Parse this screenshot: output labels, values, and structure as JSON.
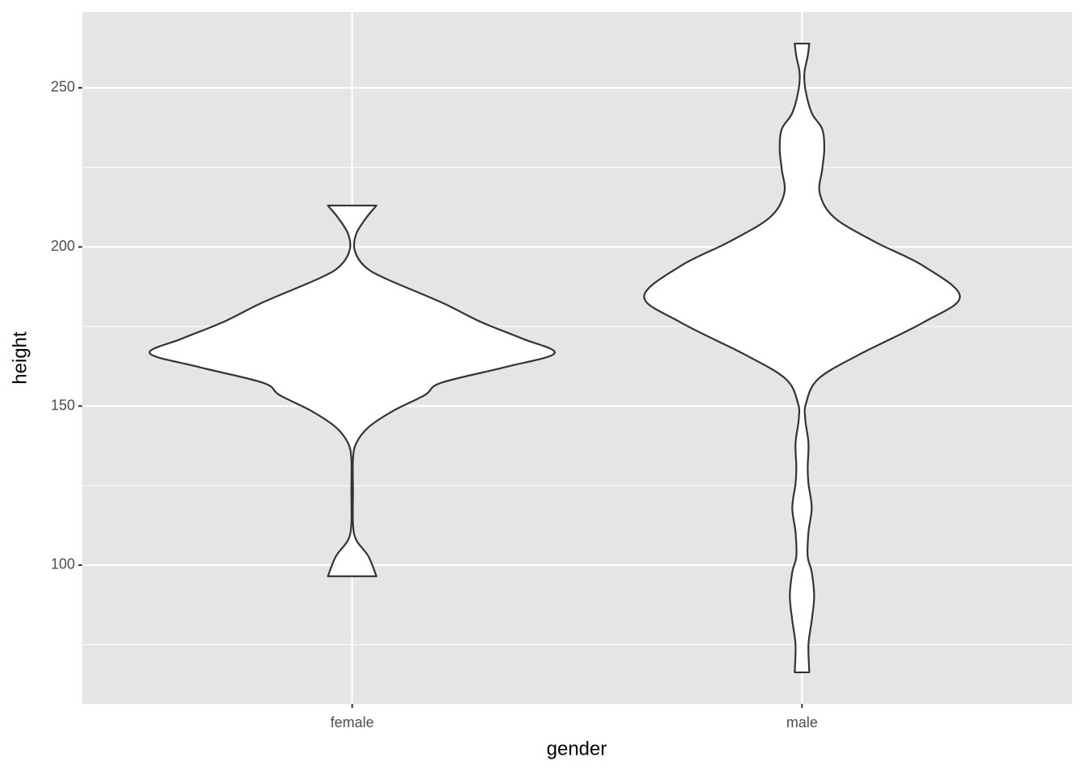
{
  "chart_data": {
    "type": "violin",
    "x_label": "gender",
    "y_label": "height",
    "categories": [
      "female",
      "male"
    ],
    "violins": [
      {
        "y": [
          213,
          209.2,
          204.1,
          199.1,
          194,
          190.2,
          182.6,
          176.3,
          171.2,
          166.6,
          162.3,
          157.3,
          153.5,
          148.4,
          143.3,
          138.3,
          133.2,
          123.1,
          113,
          107.9,
          102.8,
          96.5
        ],
        "width": [
          0.12,
          0.07,
          0.02,
          0.012,
          0.06,
          0.16,
          0.44,
          0.64,
          0.84,
          1,
          0.76,
          0.44,
          0.36,
          0.2,
          0.08,
          0.02,
          0.004,
          0.004,
          0.004,
          0.02,
          0.08,
          0.12
        ]
      },
      {
        "y": [
          263.9,
          259.9,
          254.8,
          249.7,
          242.1,
          237,
          230.7,
          224.4,
          216.8,
          209.2,
          201.6,
          194,
          184.4,
          176.3,
          166.1,
          158.5,
          150.9,
          145.9,
          138.3,
          130.7,
          125.6,
          118,
          110.4,
          102.8,
          97.8,
          90.2,
          82.6,
          75,
          66.3
        ],
        "width": [
          0.036,
          0.028,
          0.012,
          0.016,
          0.048,
          0.1,
          0.11,
          0.1,
          0.088,
          0.16,
          0.36,
          0.6,
          0.78,
          0.6,
          0.28,
          0.08,
          0.02,
          0.016,
          0.032,
          0.028,
          0.032,
          0.048,
          0.032,
          0.028,
          0.048,
          0.06,
          0.048,
          0.032,
          0.036
        ]
      }
    ],
    "fill": "#ffffff",
    "outline": "#333333",
    "ylim": [
      56.4,
      273.8
    ],
    "yticks": [
      100,
      150,
      200,
      250
    ],
    "minor_yticks": [
      75,
      125,
      175,
      225
    ],
    "grid": true
  }
}
